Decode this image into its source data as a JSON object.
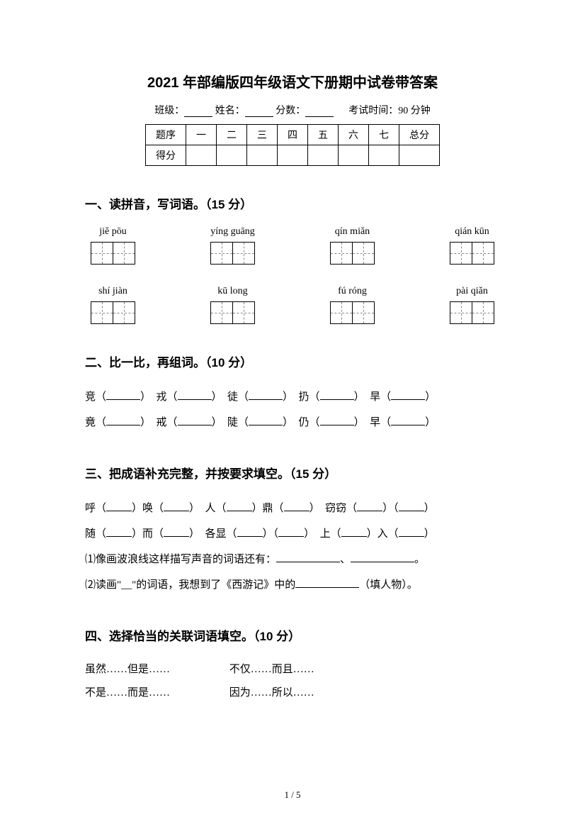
{
  "title": "2021 年部编版四年级语文下册期中试卷带答案",
  "info": {
    "class_label": "班级：",
    "name_label": "姓名：",
    "score_label": "分数：",
    "time_label": "考试时间：90 分钟"
  },
  "score_table": {
    "headers": [
      "题序",
      "一",
      "二",
      "三",
      "四",
      "五",
      "六",
      "七",
      "总分"
    ],
    "row2_label": "得分"
  },
  "section1": {
    "heading": "一、读拼音，写词语。（15 分）",
    "row1": [
      {
        "pinyin": "jiě pōu",
        "boxes": 2
      },
      {
        "pinyin": "yíng guāng",
        "boxes": 2
      },
      {
        "pinyin": "qín miǎn",
        "boxes": 2
      },
      {
        "pinyin": "qián kūn",
        "boxes": 2
      }
    ],
    "row2": [
      {
        "pinyin": "shí jiàn",
        "boxes": 2
      },
      {
        "pinyin": "kū long",
        "boxes": 2
      },
      {
        "pinyin": "fú róng",
        "boxes": 2
      },
      {
        "pinyin": "pài qiǎn",
        "boxes": 2
      }
    ]
  },
  "section2": {
    "heading": "二、比一比，再组词。（10 分）",
    "row1": [
      "竞（",
      "）　戎（",
      "）　徒（",
      "）　扔（",
      "）　旱（",
      "）"
    ],
    "row2": [
      "竟（",
      "）　戒（",
      "）　陡（",
      "）　仍（",
      "）　早（",
      "）"
    ]
  },
  "section3": {
    "heading": "三、把成语补充完整，并按要求填空。（15 分）",
    "line1_parts": [
      "呼（",
      "）唤（",
      "）　人（",
      "）鼎（",
      "）　窃窃（",
      "）（",
      "）"
    ],
    "line2_parts": [
      "随（",
      "）而（",
      "）　各显（",
      "）（",
      "）　上（",
      "）入（",
      "）"
    ],
    "q1_prefix": "⑴",
    "q1_text": "像画波浪线这样描写声音的词语还有：",
    "q1_sep": "、",
    "q1_end": "。",
    "q2_prefix": "⑵",
    "q2_text_a": "读画",
    "q2_quote": "\"__\"",
    "q2_text_b": "的词语，我想到了《西游记》中的",
    "q2_suffix": "（填人物）。"
  },
  "section4": {
    "heading": "四、选择恰当的关联词语填空。（10 分）",
    "items": [
      "虽然……但是……",
      "不仅……而且……",
      "不是……而是……",
      "因为……所以……"
    ]
  },
  "page_footer": "1 / 5"
}
